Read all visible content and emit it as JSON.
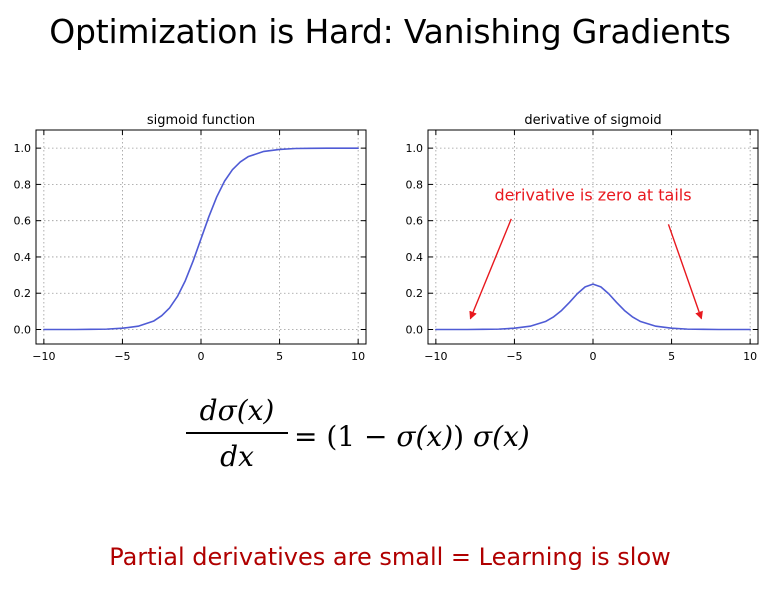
{
  "slide": {
    "title": "Optimization is Hard: Vanishing Gradients",
    "bottom_text": "Partial derivatives are small = Learning is slow"
  },
  "formula": {
    "numerator": "dσ(x)",
    "denominator": "dx",
    "rhs_prefix": "= (1 − ",
    "rhs_sigma1": "σ(x)",
    "rhs_mid": ") ",
    "rhs_sigma2": "σ(x)"
  },
  "colors": {
    "curve": "#4f5bd5",
    "annotation": "#e8181e",
    "bottom_text": "#b00000"
  },
  "chart_data": [
    {
      "type": "line",
      "title": "sigmoid function",
      "xlabel": "",
      "ylabel": "",
      "xlim": [
        -10.5,
        10.5
      ],
      "ylim": [
        -0.08,
        1.1
      ],
      "xticks": [
        -10,
        -5,
        0,
        5,
        10
      ],
      "xtick_labels": [
        "−10",
        "−5",
        "0",
        "5",
        "10"
      ],
      "yticks": [
        0.0,
        0.2,
        0.4,
        0.6,
        0.8,
        1.0
      ],
      "ytick_labels": [
        "0.0",
        "0.2",
        "0.4",
        "0.6",
        "0.8",
        "1.0"
      ],
      "grid": true,
      "series": [
        {
          "x": [
            -10,
            -9,
            -8,
            -7,
            -6,
            -5,
            -4,
            -3,
            -2.5,
            -2,
            -1.5,
            -1,
            -0.5,
            0,
            0.5,
            1,
            1.5,
            2,
            2.5,
            3,
            4,
            5,
            6,
            7,
            8,
            9,
            10
          ],
          "y": [
            0.0,
            0.0,
            0.0,
            0.001,
            0.002,
            0.007,
            0.018,
            0.047,
            0.076,
            0.119,
            0.182,
            0.269,
            0.378,
            0.5,
            0.622,
            0.731,
            0.818,
            0.881,
            0.924,
            0.953,
            0.982,
            0.993,
            0.998,
            0.999,
            1.0,
            1.0,
            1.0
          ]
        }
      ],
      "annotations": []
    },
    {
      "type": "line",
      "title": "derivative of sigmoid",
      "xlabel": "",
      "ylabel": "",
      "xlim": [
        -10.5,
        10.5
      ],
      "ylim": [
        -0.08,
        1.1
      ],
      "xticks": [
        -10,
        -5,
        0,
        5,
        10
      ],
      "xtick_labels": [
        "−10",
        "−5",
        "0",
        "5",
        "10"
      ],
      "yticks": [
        0.0,
        0.2,
        0.4,
        0.6,
        0.8,
        1.0
      ],
      "ytick_labels": [
        "0.0",
        "0.2",
        "0.4",
        "0.6",
        "0.8",
        "1.0"
      ],
      "grid": true,
      "series": [
        {
          "x": [
            -10,
            -9,
            -8,
            -7,
            -6,
            -5,
            -4,
            -3,
            -2.5,
            -2,
            -1.5,
            -1,
            -0.5,
            0,
            0.5,
            1,
            1.5,
            2,
            2.5,
            3,
            4,
            5,
            6,
            7,
            8,
            9,
            10
          ],
          "y": [
            0.0,
            0.0,
            0.0,
            0.001,
            0.002,
            0.007,
            0.018,
            0.045,
            0.07,
            0.105,
            0.149,
            0.197,
            0.235,
            0.25,
            0.235,
            0.197,
            0.149,
            0.105,
            0.07,
            0.045,
            0.018,
            0.007,
            0.002,
            0.001,
            0.0,
            0.0,
            0.0
          ]
        }
      ],
      "annotations": [
        {
          "text": "derivative is zero at tails",
          "text_x": 0,
          "text_y": 0.71,
          "arrows": [
            {
              "from": [
                -5.2,
                0.61
              ],
              "to": [
                -7.8,
                0.06
              ]
            },
            {
              "from": [
                4.8,
                0.58
              ],
              "to": [
                6.9,
                0.06
              ]
            }
          ]
        }
      ]
    }
  ]
}
